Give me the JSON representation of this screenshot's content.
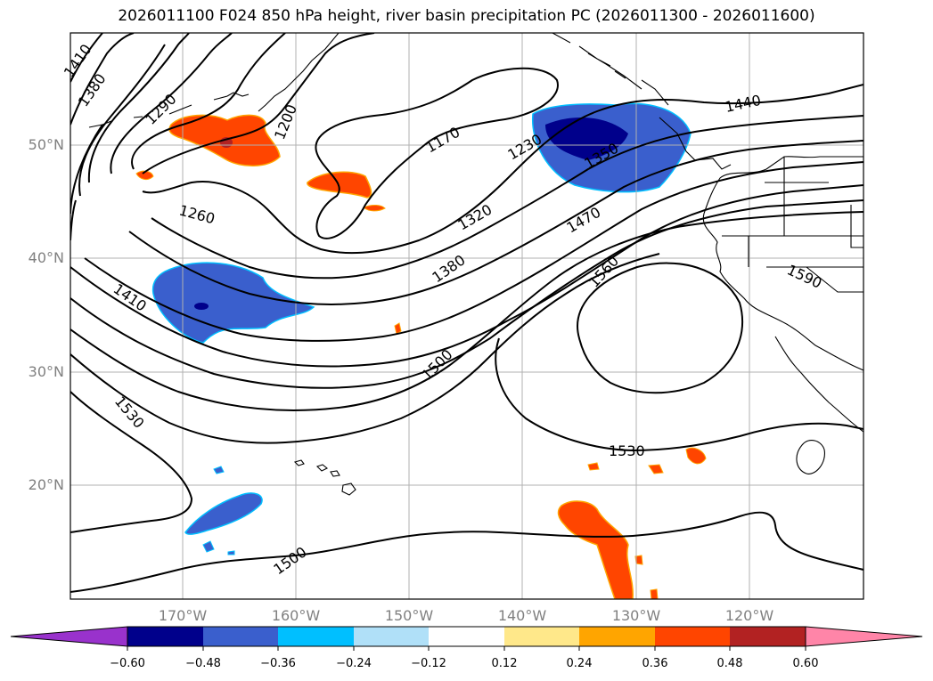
{
  "title": "2026011100 F024 850 hPa height, river basin precipitation PC (2026011300 - 2026011600)",
  "lat_labels": [
    "50°N",
    "40°N",
    "30°N",
    "20°N"
  ],
  "lon_labels": [
    "170°W",
    "160°W",
    "150°W",
    "140°W",
    "130°W",
    "120°W"
  ],
  "contour_labels": [
    "1410",
    "1380",
    "1290",
    "1200",
    "1170",
    "1230",
    "1350",
    "1440",
    "1260",
    "1320",
    "1470",
    "1380",
    "1560",
    "1590",
    "1410",
    "1500",
    "1530",
    "1530",
    "1500"
  ],
  "colorbar": {
    "ticks": [
      "−0.60",
      "−0.48",
      "−0.36",
      "−0.24",
      "−0.12",
      "0.12",
      "0.24",
      "0.36",
      "0.48",
      "0.60"
    ],
    "colors": [
      "#9932cc",
      "#00008b",
      "#3a5fcd",
      "#00bfff",
      "#b0e0f8",
      "#ffffff",
      "#ffe88a",
      "#ffa500",
      "#ff4500",
      "#b22222",
      "#ff85a8"
    ]
  }
}
